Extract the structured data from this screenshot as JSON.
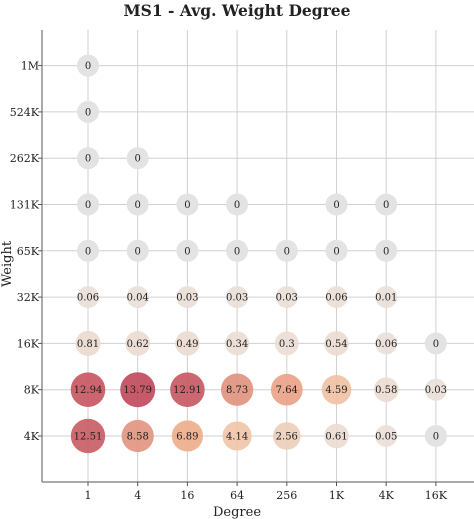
{
  "chart_data": {
    "type": "bubble-grid",
    "title": "MS1 - Avg. Weight Degree",
    "xlabel": "Degree",
    "ylabel": "Weight",
    "x_categories": [
      "1",
      "4",
      "16",
      "64",
      "256",
      "1K",
      "4K",
      "16K"
    ],
    "y_categories": [
      "4K",
      "8K",
      "16K",
      "32K",
      "65K",
      "131K",
      "262K",
      "524K",
      "1M"
    ],
    "grid": true,
    "colors": {
      "zero": "#e3e3e3",
      "low": "#eadfd8",
      "mid": "#f2b68f",
      "high": "#c0485a"
    },
    "points": [
      {
        "x": "1",
        "y": "1M",
        "value": "0"
      },
      {
        "x": "1",
        "y": "524K",
        "value": "0"
      },
      {
        "x": "1",
        "y": "262K",
        "value": "0"
      },
      {
        "x": "4",
        "y": "262K",
        "value": "0"
      },
      {
        "x": "1",
        "y": "131K",
        "value": "0"
      },
      {
        "x": "4",
        "y": "131K",
        "value": "0"
      },
      {
        "x": "16",
        "y": "131K",
        "value": "0"
      },
      {
        "x": "64",
        "y": "131K",
        "value": "0"
      },
      {
        "x": "1K",
        "y": "131K",
        "value": "0"
      },
      {
        "x": "4K",
        "y": "131K",
        "value": "0"
      },
      {
        "x": "1",
        "y": "65K",
        "value": "0"
      },
      {
        "x": "4",
        "y": "65K",
        "value": "0"
      },
      {
        "x": "16",
        "y": "65K",
        "value": "0"
      },
      {
        "x": "64",
        "y": "65K",
        "value": "0"
      },
      {
        "x": "256",
        "y": "65K",
        "value": "0"
      },
      {
        "x": "1K",
        "y": "65K",
        "value": "0"
      },
      {
        "x": "4K",
        "y": "65K",
        "value": "0"
      },
      {
        "x": "1",
        "y": "32K",
        "value": "0.06"
      },
      {
        "x": "4",
        "y": "32K",
        "value": "0.04"
      },
      {
        "x": "16",
        "y": "32K",
        "value": "0.03"
      },
      {
        "x": "64",
        "y": "32K",
        "value": "0.03"
      },
      {
        "x": "256",
        "y": "32K",
        "value": "0.03"
      },
      {
        "x": "1K",
        "y": "32K",
        "value": "0.06"
      },
      {
        "x": "4K",
        "y": "32K",
        "value": "0.01"
      },
      {
        "x": "1",
        "y": "16K",
        "value": "0.81"
      },
      {
        "x": "4",
        "y": "16K",
        "value": "0.62"
      },
      {
        "x": "16",
        "y": "16K",
        "value": "0.49"
      },
      {
        "x": "64",
        "y": "16K",
        "value": "0.34"
      },
      {
        "x": "256",
        "y": "16K",
        "value": "0.3"
      },
      {
        "x": "1K",
        "y": "16K",
        "value": "0.54"
      },
      {
        "x": "4K",
        "y": "16K",
        "value": "0.06"
      },
      {
        "x": "16K",
        "y": "16K",
        "value": "0"
      },
      {
        "x": "1",
        "y": "8K",
        "value": "12.94"
      },
      {
        "x": "4",
        "y": "8K",
        "value": "13.79"
      },
      {
        "x": "16",
        "y": "8K",
        "value": "12.91"
      },
      {
        "x": "64",
        "y": "8K",
        "value": "8.73"
      },
      {
        "x": "256",
        "y": "8K",
        "value": "7.64"
      },
      {
        "x": "1K",
        "y": "8K",
        "value": "4.59"
      },
      {
        "x": "4K",
        "y": "8K",
        "value": "0.58"
      },
      {
        "x": "16K",
        "y": "8K",
        "value": "0.03"
      },
      {
        "x": "1",
        "y": "4K",
        "value": "12.51"
      },
      {
        "x": "4",
        "y": "4K",
        "value": "8.58"
      },
      {
        "x": "16",
        "y": "4K",
        "value": "6.89"
      },
      {
        "x": "64",
        "y": "4K",
        "value": "4.14"
      },
      {
        "x": "256",
        "y": "4K",
        "value": "2.56"
      },
      {
        "x": "1K",
        "y": "4K",
        "value": "0.61"
      },
      {
        "x": "4K",
        "y": "4K",
        "value": "0.05"
      },
      {
        "x": "16K",
        "y": "4K",
        "value": "0"
      }
    ]
  }
}
